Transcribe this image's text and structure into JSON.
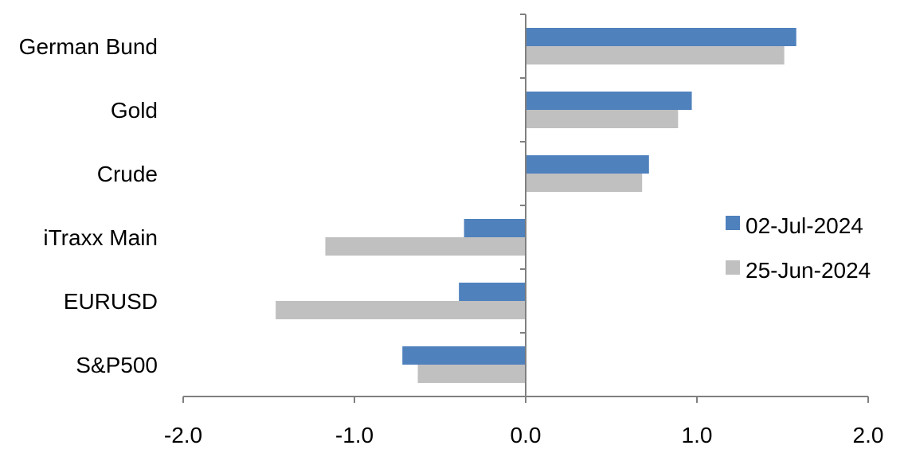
{
  "chart_data": {
    "type": "bar",
    "orientation": "horizontal",
    "categories": [
      "German Bund",
      "Gold",
      "Crude",
      "iTraxx Main",
      "EURUSD",
      "S&P500"
    ],
    "series": [
      {
        "name": "02-Jul-2024",
        "color": "#4f81bd",
        "values": [
          1.58,
          0.97,
          0.72,
          -0.36,
          -0.39,
          -0.72
        ]
      },
      {
        "name": "25-Jun-2024",
        "color": "#c0c0c0",
        "values": [
          1.51,
          0.89,
          0.68,
          -1.17,
          -1.46,
          -0.63
        ]
      }
    ],
    "xlim": [
      -2.0,
      2.0
    ],
    "xticks": [
      "-2.0",
      "-1.0",
      "0.0",
      "1.0",
      "2.0"
    ],
    "xtick_values": [
      -2,
      -1,
      0,
      1,
      2
    ],
    "grid": false,
    "legend_placement": "right"
  }
}
